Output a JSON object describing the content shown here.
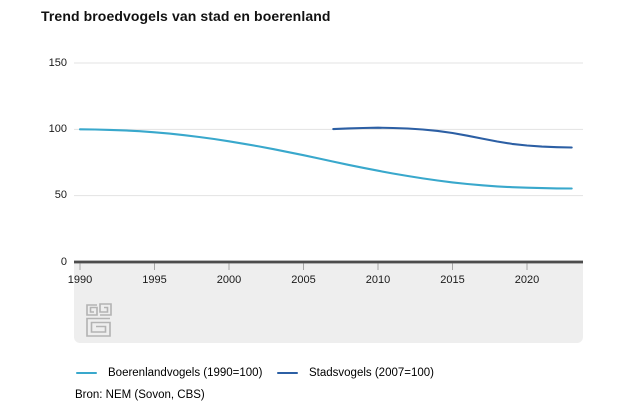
{
  "title": "Trend broedvogels van stad en boerenland",
  "source": "Bron: NEM (Sovon, CBS)",
  "logo_name": "cbs-logo",
  "colors": {
    "farmland_line": "#39A8CC",
    "city_line": "#2C5FA4",
    "gridline": "#e3e3e3",
    "axis": "#4c4c4c",
    "tick": "#a6a6a6",
    "band": "#eeeeee",
    "logo": "#b3b3b3"
  },
  "legend": [
    {
      "label": "Boerenlandvogels (1990=100)",
      "color": "#39A8CC"
    },
    {
      "label": "Stadsvogels (2007=100)",
      "color": "#2C5FA4"
    }
  ],
  "chart_data": {
    "type": "line",
    "title": "Trend broedvogels van stad en boerenland",
    "xlabel": "",
    "ylabel": "",
    "x_ticks": [
      1990,
      1995,
      2000,
      2005,
      2010,
      2015,
      2020
    ],
    "y_ticks": [
      0,
      50,
      100,
      150
    ],
    "xlim": [
      1989.6,
      2023.7
    ],
    "ylim": [
      0,
      150
    ],
    "grid": true,
    "legend_position": "bottom",
    "series": [
      {
        "name": "Boerenlandvogels (1990=100)",
        "color": "#39A8CC",
        "x": [
          1990,
          1991,
          1992,
          1993,
          1994,
          1995,
          1996,
          1997,
          1998,
          1999,
          2000,
          2001,
          2002,
          2003,
          2004,
          2005,
          2006,
          2007,
          2008,
          2009,
          2010,
          2011,
          2012,
          2013,
          2014,
          2015,
          2016,
          2017,
          2018,
          2019,
          2020,
          2021,
          2022,
          2023
        ],
        "values": [
          100,
          99.9,
          99.6,
          99.2,
          98.6,
          97.8,
          96.8,
          95.6,
          94.2,
          92.7,
          91.0,
          89.1,
          87.1,
          85.0,
          82.8,
          80.5,
          78.1,
          75.7,
          73.3,
          71.0,
          68.8,
          66.7,
          64.8,
          63.0,
          61.4,
          60.0,
          58.8,
          57.8,
          57.0,
          56.4,
          56.0,
          55.7,
          55.5,
          55.4
        ]
      },
      {
        "name": "Stadsvogels (2007=100)",
        "color": "#2C5FA4",
        "x": [
          2007,
          2008,
          2009,
          2010,
          2011,
          2012,
          2013,
          2014,
          2015,
          2016,
          2017,
          2018,
          2019,
          2020,
          2021,
          2022,
          2023
        ],
        "values": [
          100.2,
          100.7,
          101.0,
          101.2,
          101.0,
          100.6,
          99.9,
          98.8,
          97.2,
          95.2,
          93.0,
          90.8,
          89.0,
          87.8,
          87.0,
          86.5,
          86.3
        ]
      }
    ]
  }
}
